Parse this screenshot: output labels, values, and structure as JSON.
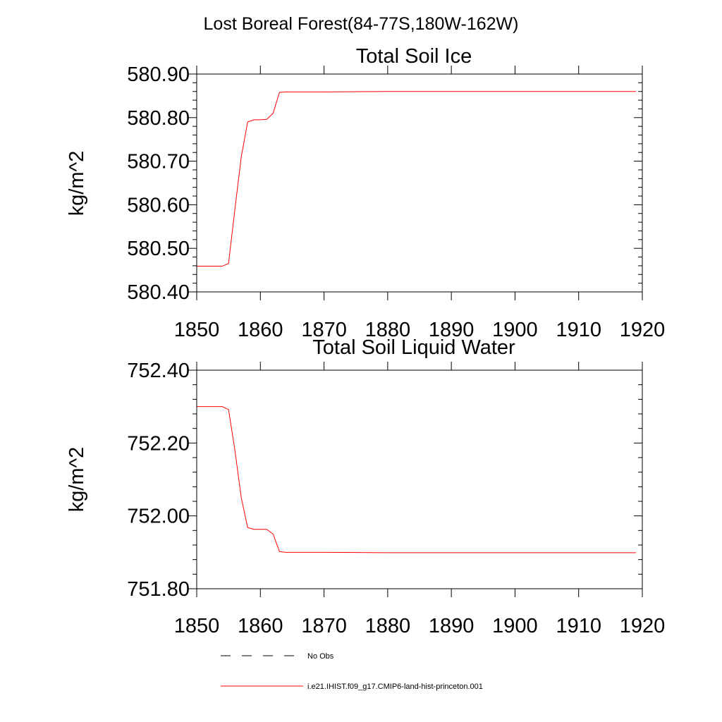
{
  "figure": {
    "main_title": "Lost Boreal Forest(84-77S,180W-162W)"
  },
  "chart_data": [
    {
      "type": "line",
      "title": "Total Soil Ice",
      "xlabel": "",
      "ylabel": "kg/m^2",
      "xlim": [
        1850,
        1920
      ],
      "ylim": [
        580.4,
        580.9
      ],
      "x_ticks": [
        1850,
        1860,
        1870,
        1880,
        1890,
        1900,
        1910,
        1920
      ],
      "x_tick_labels": [
        "1850",
        "1860",
        "1870",
        "1880",
        "1890",
        "1900",
        "1910",
        "1920"
      ],
      "y_ticks": [
        580.4,
        580.5,
        580.6,
        580.7,
        580.8,
        580.9
      ],
      "y_tick_labels": [
        "580.40",
        "580.50",
        "580.60",
        "580.70",
        "580.80",
        "580.90"
      ],
      "grid": false,
      "series": [
        {
          "name": "i.e21.IHIST.f09_g17.CMIP6-land-hist-princeton.001",
          "color": "#ff0000",
          "x": [
            1850,
            1851,
            1852,
            1853,
            1854,
            1855,
            1856,
            1857,
            1858,
            1859,
            1860,
            1861,
            1862,
            1863,
            1864,
            1865,
            1870,
            1880,
            1890,
            1900,
            1910,
            1919
          ],
          "y": [
            580.459,
            580.459,
            580.459,
            580.459,
            580.459,
            580.465,
            580.59,
            580.71,
            580.79,
            580.795,
            580.795,
            580.796,
            580.81,
            580.858,
            580.859,
            580.859,
            580.859,
            580.86,
            580.86,
            580.86,
            580.86,
            580.86
          ]
        }
      ]
    },
    {
      "type": "line",
      "title": "Total Soil Liquid Water",
      "xlabel": "",
      "ylabel": "kg/m^2",
      "xlim": [
        1850,
        1920
      ],
      "ylim": [
        751.8,
        752.4
      ],
      "x_ticks": [
        1850,
        1860,
        1870,
        1880,
        1890,
        1900,
        1910,
        1920
      ],
      "x_tick_labels": [
        "1850",
        "1860",
        "1870",
        "1880",
        "1890",
        "1900",
        "1910",
        "1920"
      ],
      "y_ticks": [
        751.8,
        752.0,
        752.2,
        752.4
      ],
      "y_tick_labels": [
        "751.80",
        "752.00",
        "752.20",
        "752.40"
      ],
      "grid": false,
      "series": [
        {
          "name": "i.e21.IHIST.f09_g17.CMIP6-land-hist-princeton.001",
          "color": "#ff0000",
          "x": [
            1850,
            1851,
            1852,
            1853,
            1854,
            1855,
            1856,
            1857,
            1858,
            1859,
            1860,
            1861,
            1862,
            1863,
            1864,
            1865,
            1870,
            1880,
            1890,
            1900,
            1910,
            1919
          ],
          "y": [
            752.3,
            752.3,
            752.3,
            752.3,
            752.3,
            752.292,
            752.18,
            752.05,
            751.968,
            751.963,
            751.963,
            751.963,
            751.95,
            751.902,
            751.9,
            751.9,
            751.9,
            751.899,
            751.899,
            751.899,
            751.899,
            751.899
          ]
        }
      ]
    }
  ],
  "legend": {
    "position": "bottom",
    "items": [
      {
        "label": "No Obs",
        "style": "dashed",
        "color": "#000000"
      },
      {
        "label": "i.e21.IHIST.f09_g17.CMIP6-land-hist-princeton.001",
        "style": "solid",
        "color": "#ff0000"
      }
    ]
  }
}
